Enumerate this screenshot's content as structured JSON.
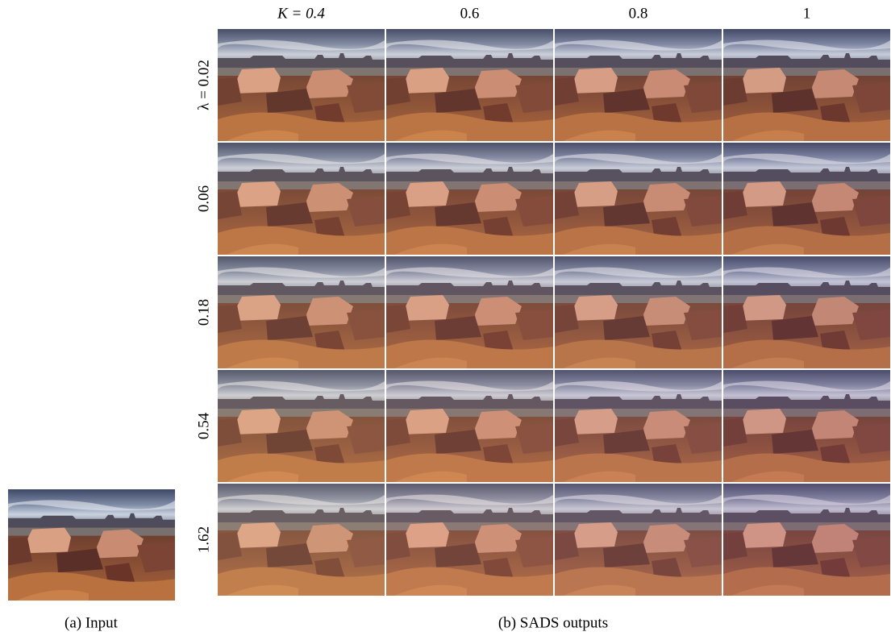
{
  "figure": {
    "columns": [
      "K = 0.4",
      "0.6",
      "0.8",
      "1"
    ],
    "rows": [
      "λ = 0.02",
      "0.06",
      "0.18",
      "0.54",
      "1.62"
    ],
    "captions": {
      "input": "(a) Input",
      "outputs": "(b) SADS outputs"
    }
  }
}
